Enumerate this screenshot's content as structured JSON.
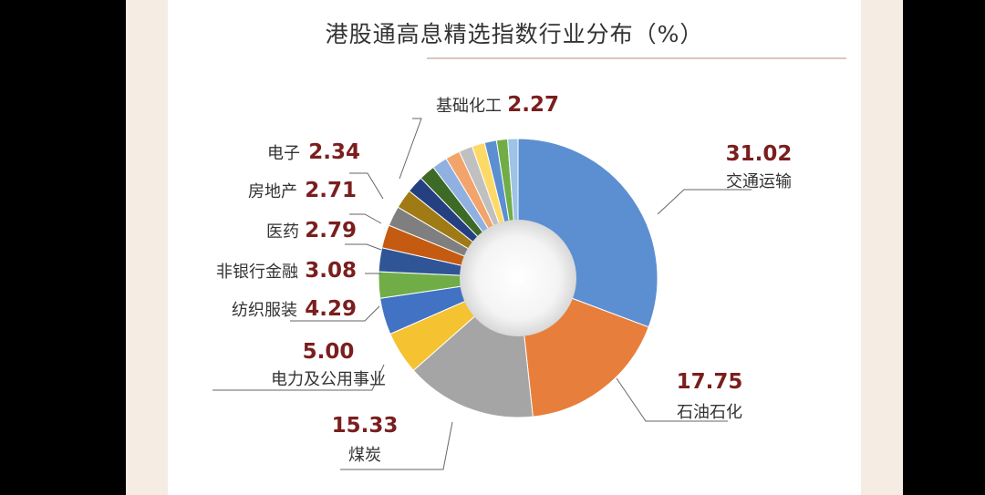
{
  "chart_data": {
    "type": "pie",
    "title": "港股通高息精选指数行业分布（%）",
    "categories": [
      "交通运输",
      "石油石化",
      "煤炭",
      "电力及公用事业",
      "纺织服装",
      "非银行金融",
      "医药",
      "房地产",
      "电子",
      "基础化工"
    ],
    "values": [
      31.02,
      17.75,
      15.33,
      5.0,
      4.29,
      3.08,
      2.79,
      2.71,
      2.34,
      2.27
    ],
    "value_labels": [
      "31.02",
      "17.75",
      "15.33",
      "5.00",
      "4.29",
      "3.08",
      "2.79",
      "2.71",
      "2.34",
      "2.27"
    ],
    "unlabeled_values": [
      2.0,
      1.9,
      1.8,
      1.7,
      1.6,
      1.5,
      1.4,
      1.3,
      1.2
    ],
    "donut": true
  },
  "colors": {
    "slices": [
      "#5b8fd1",
      "#e87e3b",
      "#a5a5a5",
      "#f5c232",
      "#4272c4",
      "#70ad47",
      "#2f5597",
      "#c55a11",
      "#7f7f7f",
      "#a07a14"
    ],
    "unlabeled": [
      "#254080",
      "#3d6b27",
      "#8fb0e0",
      "#f2a46a",
      "#c0c0c0",
      "#ffd966",
      "#5b8fd1",
      "#70ad47",
      "#9dc3e6"
    ],
    "value_text": "#7b1e1e",
    "leader_line": "#666666"
  }
}
